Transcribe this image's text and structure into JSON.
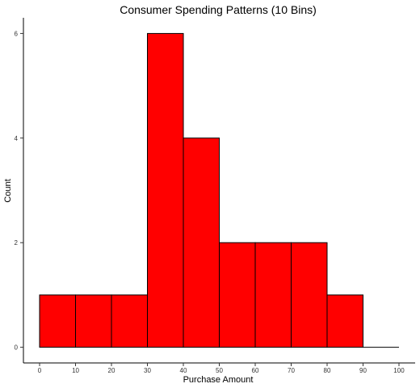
{
  "chart_data": {
    "type": "bar",
    "title": "Consumer Spending Patterns (10 Bins)",
    "xlabel": "Purchase Amount",
    "ylabel": "Count",
    "bins": [
      {
        "start": 0,
        "end": 10,
        "count": 1
      },
      {
        "start": 10,
        "end": 20,
        "count": 1
      },
      {
        "start": 20,
        "end": 30,
        "count": 1
      },
      {
        "start": 30,
        "end": 40,
        "count": 6
      },
      {
        "start": 40,
        "end": 50,
        "count": 4
      },
      {
        "start": 50,
        "end": 60,
        "count": 2
      },
      {
        "start": 60,
        "end": 70,
        "count": 2
      },
      {
        "start": 70,
        "end": 80,
        "count": 2
      },
      {
        "start": 80,
        "end": 90,
        "count": 1
      },
      {
        "start": 90,
        "end": 100,
        "count": 0
      }
    ],
    "xlim": [
      -4.5,
      104.5
    ],
    "ylim": [
      -0.3,
      6.3
    ],
    "x_ticks": [
      0,
      10,
      20,
      30,
      40,
      50,
      60,
      70,
      80,
      90,
      100
    ],
    "y_ticks": [
      0,
      2,
      4,
      6
    ],
    "grid": false,
    "colors": {
      "fill": "#ff0000",
      "edge": "#000000"
    }
  }
}
